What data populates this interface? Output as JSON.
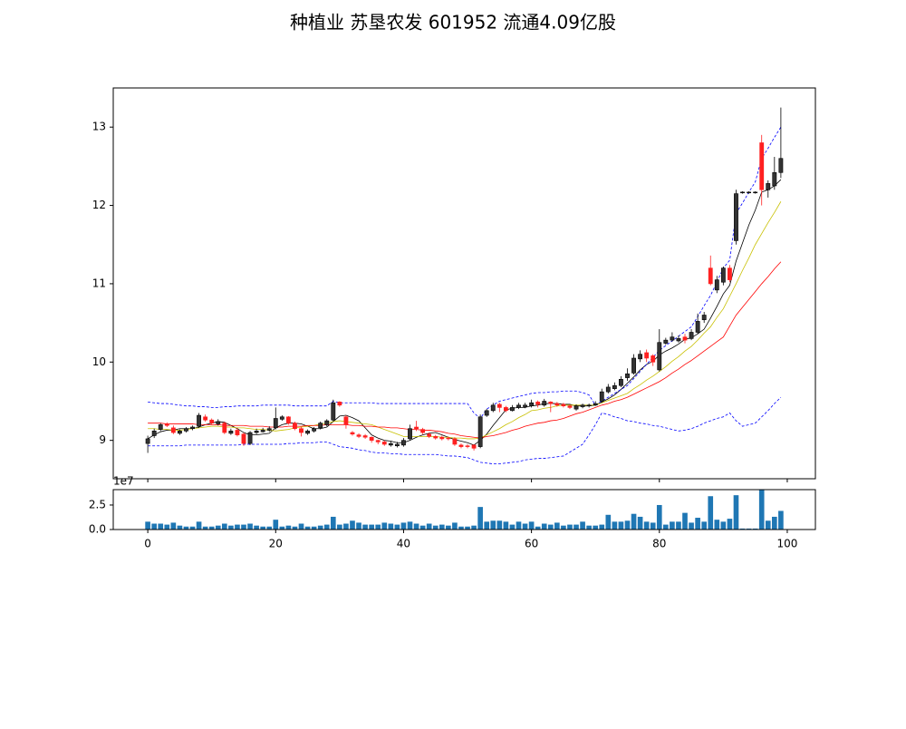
{
  "chart_data": {
    "type": "candlestick",
    "title": "种植业 苏垦农发 601952 流通4.09亿股",
    "x": [
      0,
      1,
      2,
      3,
      4,
      5,
      6,
      7,
      8,
      9,
      10,
      11,
      12,
      13,
      14,
      15,
      16,
      17,
      18,
      19,
      20,
      21,
      22,
      23,
      24,
      25,
      26,
      27,
      28,
      29,
      30,
      31,
      32,
      33,
      34,
      35,
      36,
      37,
      38,
      39,
      40,
      41,
      42,
      43,
      44,
      45,
      46,
      47,
      48,
      49,
      50,
      51,
      52,
      53,
      54,
      55,
      56,
      57,
      58,
      59,
      60,
      61,
      62,
      63,
      64,
      65,
      66,
      67,
      68,
      69,
      70,
      71,
      72,
      73,
      74,
      75,
      76,
      77,
      78,
      79,
      80,
      81,
      82,
      83,
      84,
      85,
      86,
      87,
      88,
      89,
      90,
      91,
      92,
      93,
      94,
      95,
      96,
      97,
      98,
      99
    ],
    "open": [
      8.96,
      9.06,
      9.14,
      9.21,
      9.16,
      9.09,
      9.12,
      9.15,
      9.18,
      9.3,
      9.26,
      9.21,
      9.22,
      9.09,
      9.13,
      9.08,
      8.96,
      9.1,
      9.11,
      9.13,
      9.16,
      9.27,
      9.3,
      9.22,
      9.15,
      9.09,
      9.12,
      9.16,
      9.2,
      9.26,
      9.49,
      9.3,
      9.1,
      9.07,
      9.06,
      9.04,
      9.0,
      8.98,
      8.94,
      8.93,
      8.94,
      9.02,
      9.17,
      9.14,
      9.08,
      9.05,
      9.04,
      9.03,
      9.02,
      8.94,
      8.93,
      8.94,
      8.92,
      9.32,
      9.38,
      9.46,
      9.42,
      9.38,
      9.42,
      9.43,
      9.44,
      9.49,
      9.45,
      9.49,
      9.47,
      9.46,
      9.44,
      9.4,
      9.43,
      9.44,
      9.45,
      9.5,
      9.62,
      9.66,
      9.7,
      9.8,
      9.86,
      10.04,
      10.12,
      10.08,
      9.9,
      10.24,
      10.28,
      10.27,
      10.32,
      10.3,
      10.38,
      10.54,
      11.2,
      10.92,
      11.02,
      11.2,
      11.55,
      12.16,
      12.16,
      12.16,
      12.8,
      12.2,
      12.25,
      12.42
    ],
    "high": [
      9.06,
      9.15,
      9.22,
      9.23,
      9.19,
      9.14,
      9.17,
      9.19,
      9.35,
      9.33,
      9.28,
      9.27,
      9.24,
      9.15,
      9.16,
      9.1,
      9.12,
      9.15,
      9.16,
      9.18,
      9.42,
      9.32,
      9.31,
      9.24,
      9.17,
      9.14,
      9.17,
      9.24,
      9.27,
      9.52,
      9.5,
      9.32,
      9.12,
      9.09,
      9.08,
      9.05,
      9.01,
      9.0,
      8.99,
      8.98,
      9.03,
      9.2,
      9.25,
      9.16,
      9.1,
      9.07,
      9.06,
      9.05,
      9.04,
      8.96,
      8.95,
      8.95,
      9.33,
      9.4,
      9.48,
      9.48,
      9.44,
      9.45,
      9.48,
      9.48,
      9.52,
      9.51,
      9.53,
      9.5,
      9.49,
      9.48,
      9.46,
      9.46,
      9.47,
      9.47,
      9.5,
      9.66,
      9.72,
      9.74,
      9.82,
      9.92,
      10.1,
      10.15,
      10.16,
      10.1,
      10.42,
      10.31,
      10.38,
      10.34,
      10.36,
      10.42,
      10.62,
      10.64,
      11.36,
      11.1,
      11.22,
      11.24,
      12.2,
      12.18,
      12.18,
      12.18,
      12.9,
      12.32,
      12.62,
      13.25
    ],
    "low": [
      8.84,
      9.03,
      9.12,
      9.17,
      9.08,
      9.07,
      9.1,
      9.13,
      9.16,
      9.24,
      9.2,
      9.19,
      9.08,
      9.07,
      9.05,
      8.93,
      8.94,
      9.08,
      9.1,
      9.11,
      9.14,
      9.25,
      9.2,
      9.13,
      9.05,
      9.07,
      9.1,
      9.14,
      9.18,
      9.24,
      9.43,
      9.15,
      9.06,
      9.03,
      9.02,
      8.97,
      8.95,
      8.93,
      8.92,
      8.91,
      8.92,
      9.0,
      9.12,
      9.08,
      9.03,
      9.01,
      9.0,
      9.0,
      8.93,
      8.9,
      8.9,
      8.87,
      8.9,
      9.3,
      9.36,
      9.36,
      9.36,
      9.37,
      9.4,
      9.41,
      9.42,
      9.42,
      9.43,
      9.36,
      9.43,
      9.42,
      9.4,
      9.38,
      9.41,
      9.42,
      9.44,
      9.48,
      9.6,
      9.64,
      9.68,
      9.76,
      9.84,
      10.0,
      10.0,
      9.95,
      9.88,
      10.22,
      10.26,
      10.25,
      10.24,
      10.28,
      10.36,
      10.5,
      10.98,
      10.88,
      10.98,
      11.02,
      11.5,
      12.15,
      12.15,
      12.15,
      12.0,
      12.1,
      12.2,
      12.35
    ],
    "close": [
      9.02,
      9.12,
      9.2,
      9.19,
      9.1,
      9.12,
      9.15,
      9.17,
      9.32,
      9.26,
      9.22,
      9.24,
      9.1,
      9.12,
      9.07,
      8.96,
      9.1,
      9.12,
      9.13,
      9.15,
      9.28,
      9.3,
      9.22,
      9.15,
      9.1,
      9.12,
      9.15,
      9.22,
      9.25,
      9.48,
      9.45,
      9.2,
      9.08,
      9.05,
      9.04,
      9.0,
      8.98,
      8.95,
      8.96,
      8.95,
      9.0,
      9.15,
      9.15,
      9.1,
      9.05,
      9.03,
      9.02,
      9.02,
      8.95,
      8.92,
      8.92,
      8.9,
      9.3,
      9.38,
      9.45,
      9.42,
      9.38,
      9.42,
      9.45,
      9.45,
      9.48,
      9.46,
      9.5,
      9.47,
      9.45,
      9.44,
      9.42,
      9.44,
      9.45,
      9.45,
      9.47,
      9.62,
      9.68,
      9.7,
      9.78,
      9.85,
      10.05,
      10.1,
      10.05,
      10.0,
      10.25,
      10.28,
      10.32,
      10.3,
      10.28,
      10.38,
      10.52,
      10.6,
      11.0,
      11.05,
      11.2,
      11.05,
      12.15,
      12.17,
      12.17,
      12.17,
      12.2,
      12.28,
      12.42,
      12.6
    ],
    "volume": [
      8000000,
      6000000,
      6000000,
      5000000,
      7000000,
      4000000,
      3000000,
      3000000,
      8000000,
      3000000,
      3000000,
      4000000,
      6000000,
      4000000,
      5000000,
      5000000,
      6000000,
      4000000,
      3000000,
      3000000,
      10000000,
      3000000,
      4000000,
      3000000,
      6000000,
      3000000,
      3000000,
      4000000,
      5000000,
      13000000,
      5000000,
      6000000,
      9000000,
      7000000,
      5000000,
      5000000,
      5000000,
      7000000,
      6000000,
      5000000,
      7000000,
      8000000,
      6000000,
      4000000,
      6000000,
      4000000,
      5000000,
      4000000,
      7000000,
      3000000,
      3000000,
      4000000,
      23000000,
      8000000,
      9000000,
      9000000,
      8000000,
      5000000,
      8000000,
      6000000,
      8000000,
      3000000,
      6000000,
      5000000,
      7000000,
      4000000,
      5000000,
      5000000,
      8000000,
      4000000,
      4000000,
      5000000,
      15000000,
      8000000,
      8000000,
      9000000,
      16000000,
      13000000,
      8000000,
      7000000,
      25000000,
      5000000,
      8000000,
      8000000,
      17000000,
      7000000,
      12000000,
      8000000,
      34000000,
      10000000,
      8000000,
      11000000,
      35000000,
      1000000,
      1000000,
      1000000,
      41000000,
      9000000,
      13000000,
      19000000
    ],
    "lines": [
      {
        "color": "#000000",
        "style": "solid",
        "values": [
          9.02,
          9.07,
          9.11,
          9.13,
          9.13,
          9.15,
          9.15,
          9.15,
          9.17,
          9.2,
          9.22,
          9.24,
          9.23,
          9.19,
          9.15,
          9.1,
          9.07,
          9.07,
          9.08,
          9.09,
          9.16,
          9.2,
          9.22,
          9.22,
          9.21,
          9.18,
          9.15,
          9.15,
          9.17,
          9.24,
          9.31,
          9.32,
          9.29,
          9.25,
          9.16,
          9.07,
          9.03,
          9.0,
          8.99,
          8.97,
          8.97,
          9.0,
          9.04,
          9.07,
          9.09,
          9.1,
          9.07,
          9.04,
          9.01,
          8.99,
          8.97,
          8.94,
          9.0,
          9.08,
          9.19,
          9.29,
          9.39,
          9.41,
          9.42,
          9.42,
          9.44,
          9.45,
          9.47,
          9.47,
          9.47,
          9.46,
          9.46,
          9.44,
          9.44,
          9.44,
          9.45,
          9.49,
          9.53,
          9.58,
          9.65,
          9.73,
          9.81,
          9.9,
          9.97,
          10.01,
          10.09,
          10.14,
          10.18,
          10.23,
          10.29,
          10.31,
          10.36,
          10.42,
          10.56,
          10.71,
          10.87,
          10.98,
          11.29,
          11.52,
          11.75,
          11.94,
          12.17,
          12.2,
          12.25,
          12.33
        ]
      },
      {
        "color": "#c8c000",
        "style": "solid",
        "values": [
          9.15,
          9.15,
          9.14,
          9.14,
          9.13,
          9.13,
          9.14,
          9.15,
          9.16,
          9.17,
          9.18,
          9.18,
          9.17,
          9.17,
          9.16,
          9.16,
          9.15,
          9.14,
          9.14,
          9.13,
          9.12,
          9.13,
          9.14,
          9.16,
          9.17,
          9.18,
          9.19,
          9.21,
          9.22,
          9.24,
          9.25,
          9.24,
          9.23,
          9.22,
          9.21,
          9.2,
          9.17,
          9.14,
          9.11,
          9.08,
          9.05,
          9.05,
          9.05,
          9.05,
          9.05,
          9.05,
          9.04,
          9.04,
          9.03,
          9.03,
          9.02,
          9.02,
          9.03,
          9.07,
          9.11,
          9.15,
          9.2,
          9.24,
          9.29,
          9.33,
          9.38,
          9.39,
          9.41,
          9.42,
          9.44,
          9.45,
          9.45,
          9.45,
          9.45,
          9.45,
          9.45,
          9.48,
          9.51,
          9.54,
          9.57,
          9.6,
          9.66,
          9.71,
          9.77,
          9.82,
          9.88,
          9.94,
          10.01,
          10.07,
          10.14,
          10.2,
          10.28,
          10.37,
          10.45,
          10.57,
          10.68,
          10.84,
          11.0,
          11.17,
          11.33,
          11.5,
          11.64,
          11.78,
          11.91,
          12.05
        ]
      },
      {
        "color": "#ff0000",
        "style": "solid",
        "values": [
          9.22,
          9.22,
          9.22,
          9.21,
          9.21,
          9.21,
          9.21,
          9.21,
          9.2,
          9.2,
          9.2,
          9.2,
          9.19,
          9.19,
          9.19,
          9.19,
          9.18,
          9.18,
          9.18,
          9.17,
          9.17,
          9.17,
          9.18,
          9.18,
          9.18,
          9.19,
          9.19,
          9.19,
          9.2,
          9.2,
          9.2,
          9.2,
          9.19,
          9.19,
          9.18,
          9.18,
          9.17,
          9.17,
          9.16,
          9.16,
          9.15,
          9.14,
          9.14,
          9.13,
          9.13,
          9.12,
          9.11,
          9.09,
          9.08,
          9.06,
          9.05,
          9.04,
          9.03,
          9.05,
          9.06,
          9.08,
          9.1,
          9.13,
          9.15,
          9.18,
          9.2,
          9.22,
          9.23,
          9.25,
          9.26,
          9.28,
          9.31,
          9.34,
          9.36,
          9.39,
          9.42,
          9.45,
          9.47,
          9.5,
          9.52,
          9.55,
          9.59,
          9.63,
          9.67,
          9.71,
          9.75,
          9.8,
          9.86,
          9.91,
          9.97,
          10.02,
          10.08,
          10.14,
          10.2,
          10.26,
          10.32,
          10.46,
          10.6,
          10.7,
          10.8,
          10.9,
          11.0,
          11.09,
          11.19,
          11.28
        ]
      },
      {
        "color": "#0000ff",
        "style": "dashed",
        "values": [
          9.49,
          9.48,
          9.47,
          9.47,
          9.46,
          9.45,
          9.44,
          9.44,
          9.43,
          9.43,
          9.42,
          9.42,
          9.43,
          9.43,
          9.44,
          9.44,
          9.44,
          9.44,
          9.45,
          9.45,
          9.45,
          9.45,
          9.45,
          9.44,
          9.44,
          9.44,
          9.44,
          9.44,
          9.44,
          9.5,
          9.48,
          9.48,
          9.48,
          9.48,
          9.48,
          9.48,
          9.47,
          9.47,
          9.47,
          9.47,
          9.47,
          9.47,
          9.47,
          9.47,
          9.47,
          9.47,
          9.47,
          9.47,
          9.47,
          9.47,
          9.47,
          9.35,
          9.28,
          9.4,
          9.45,
          9.5,
          9.52,
          9.54,
          9.56,
          9.58,
          9.6,
          9.61,
          9.61,
          9.62,
          9.62,
          9.63,
          9.63,
          9.63,
          9.61,
          9.58,
          9.45,
          9.5,
          9.55,
          9.6,
          9.65,
          9.7,
          9.79,
          9.88,
          9.97,
          10.06,
          10.15,
          10.21,
          10.27,
          10.33,
          10.39,
          10.45,
          10.58,
          10.72,
          10.85,
          11.02,
          11.2,
          11.3,
          11.9,
          12.03,
          12.17,
          12.3,
          12.6,
          12.73,
          12.87,
          13.0
        ]
      },
      {
        "color": "#0000ff",
        "style": "dashed",
        "values": [
          8.93,
          8.93,
          8.93,
          8.93,
          8.93,
          8.93,
          8.94,
          8.94,
          8.94,
          8.94,
          8.94,
          8.94,
          8.94,
          8.94,
          8.94,
          8.95,
          8.95,
          8.95,
          8.95,
          8.95,
          8.95,
          8.95,
          8.96,
          8.96,
          8.97,
          8.97,
          8.97,
          8.98,
          8.98,
          8.95,
          8.92,
          8.91,
          8.9,
          8.88,
          8.87,
          8.85,
          8.84,
          8.84,
          8.83,
          8.83,
          8.82,
          8.82,
          8.82,
          8.82,
          8.82,
          8.82,
          8.81,
          8.8,
          8.8,
          8.79,
          8.78,
          8.75,
          8.72,
          8.71,
          8.7,
          8.7,
          8.71,
          8.72,
          8.73,
          8.75,
          8.76,
          8.77,
          8.77,
          8.78,
          8.79,
          8.8,
          8.85,
          8.9,
          8.95,
          9.07,
          9.2,
          9.35,
          9.33,
          9.3,
          9.28,
          9.25,
          9.24,
          9.22,
          9.21,
          9.19,
          9.18,
          9.16,
          9.14,
          9.12,
          9.13,
          9.15,
          9.18,
          9.22,
          9.25,
          9.28,
          9.3,
          9.35,
          9.25,
          9.18,
          9.2,
          9.22,
          9.3,
          9.38,
          9.47,
          9.55
        ]
      }
    ],
    "up_color": "#333333",
    "down_color": "#ff2020",
    "volume_color": "#1f77b4",
    "xlim": [
      -5.4,
      104.4
    ],
    "xticks": [
      0,
      20,
      40,
      60,
      80,
      100
    ],
    "ylim": [
      8.51,
      13.5
    ],
    "yticks": [
      9,
      10,
      11,
      12,
      13
    ],
    "volume_ylim": [
      0,
      40700000
    ],
    "volume_yticks": [
      {
        "value": 0,
        "label": "0.0"
      },
      {
        "value": 25000000,
        "label": "2.5"
      }
    ],
    "volume_offset_text": "1e7"
  }
}
